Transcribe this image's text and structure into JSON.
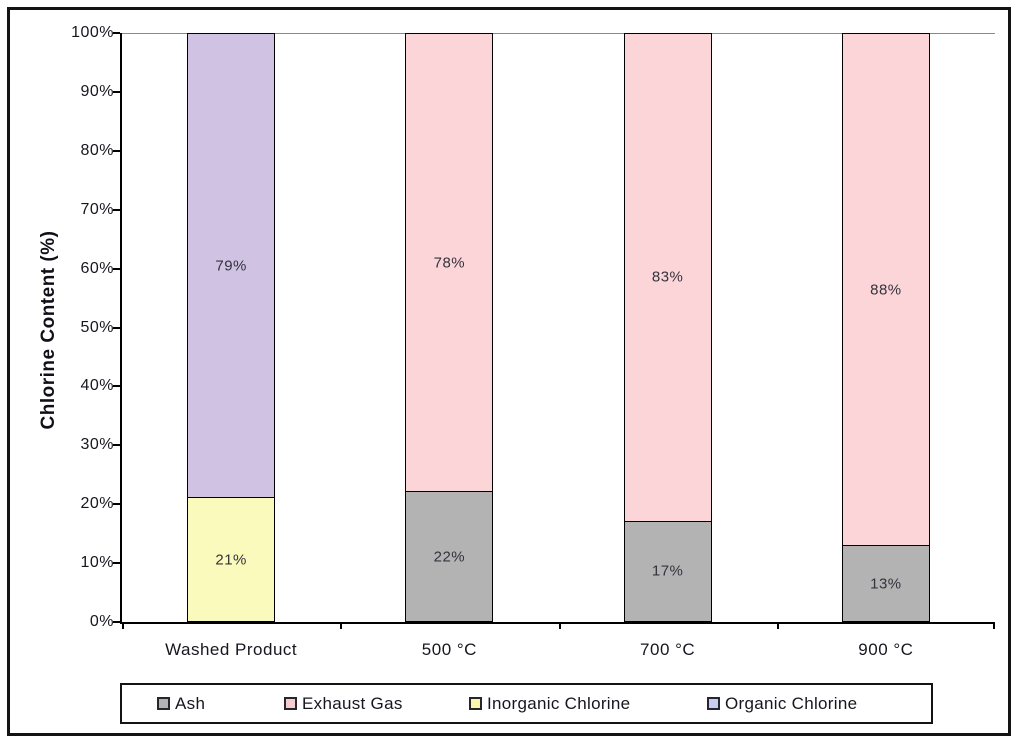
{
  "chart_data": {
    "type": "bar",
    "subtype": "stacked-100-percent",
    "title": "",
    "xlabel": "",
    "ylabel": "Chlorine Content (%)",
    "ylim": [
      0,
      100
    ],
    "ytick_step": 10,
    "ytick_labels": [
      "0%",
      "10%",
      "20%",
      "30%",
      "40%",
      "50%",
      "60%",
      "70%",
      "80%",
      "90%",
      "100%"
    ],
    "categories": [
      "Washed Product",
      "500 °C",
      "700 °C",
      "900 °C"
    ],
    "series": [
      {
        "name": "Ash",
        "color": "#B3B3B3",
        "legend_color": "#B3B3B3",
        "values": [
          null,
          22,
          17,
          13
        ]
      },
      {
        "name": "Exhaust Gas",
        "color": "#FCD5D9",
        "legend_color": "#F7CBD0",
        "values": [
          null,
          78,
          83,
          88
        ]
      },
      {
        "name": "Inorganic Chlorine",
        "color": "#FBFABD",
        "legend_color": "#FAF7AC",
        "values": [
          21,
          null,
          null,
          null
        ]
      },
      {
        "name": "Organic Chlorine",
        "color": "#CFC2E2",
        "legend_color": "#C9CDF1",
        "values": [
          79,
          null,
          null,
          null
        ]
      }
    ],
    "data_labels": [
      "21%",
      "79%",
      "22%",
      "78%",
      "17%",
      "83%",
      "13%",
      "88%"
    ],
    "legend_position": "bottom",
    "grid": false,
    "axis_color": "#000000",
    "top_gridline_color": "#8a8a8a"
  }
}
